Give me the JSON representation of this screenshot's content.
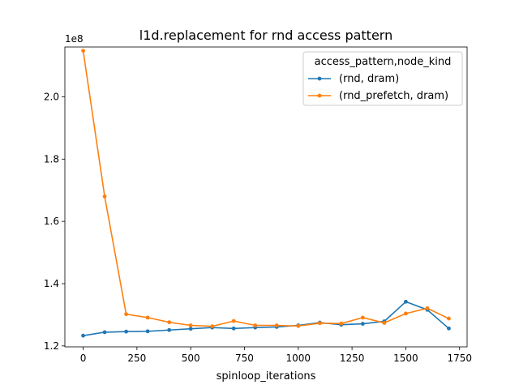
{
  "chart_data": {
    "type": "line",
    "title": "l1d.replacement for rnd access pattern",
    "xlabel": "spinloop_iterations",
    "ylabel": "",
    "y_offset_text": "1e8",
    "xlim": [
      -85,
      1785
    ],
    "ylim": [
      1.197,
      2.16
    ],
    "x_ticks": [
      0,
      250,
      500,
      750,
      1000,
      1250,
      1500,
      1750
    ],
    "x_tick_labels": [
      "0",
      "250",
      "500",
      "750",
      "1000",
      "1250",
      "1500",
      "1750"
    ],
    "y_ticks": [
      1.2,
      1.4,
      1.6,
      1.8,
      2.0
    ],
    "y_tick_labels": [
      "1.2",
      "1.4",
      "1.6",
      "1.8",
      "2.0"
    ],
    "grid": false,
    "legend": {
      "title": "access_pattern,node_kind",
      "placement": "top-right"
    },
    "x": [
      0,
      100,
      200,
      300,
      400,
      500,
      600,
      700,
      800,
      900,
      1000,
      1100,
      1200,
      1300,
      1400,
      1500,
      1600,
      1700
    ],
    "series": [
      {
        "name": "(rnd, dram)",
        "color": "#1f77b4",
        "values": [
          1.233,
          1.244,
          1.246,
          1.247,
          1.251,
          1.255,
          1.259,
          1.256,
          1.259,
          1.261,
          1.266,
          1.275,
          1.268,
          1.271,
          1.279,
          1.342,
          1.316,
          1.256
        ]
      },
      {
        "name": "(rnd_prefetch, dram)",
        "color": "#ff7f0e",
        "values": [
          2.148,
          1.68,
          1.302,
          1.291,
          1.276,
          1.266,
          1.263,
          1.28,
          1.266,
          1.266,
          1.264,
          1.273,
          1.272,
          1.291,
          1.274,
          1.304,
          1.321,
          1.288
        ]
      }
    ]
  }
}
